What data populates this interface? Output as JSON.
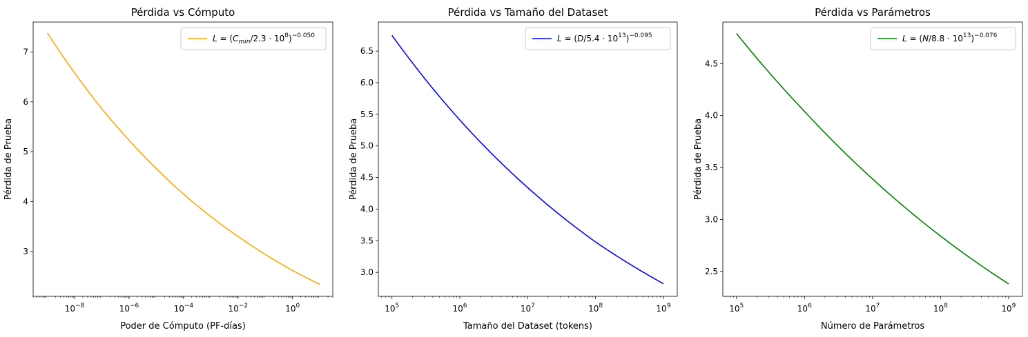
{
  "chart_data": [
    {
      "type": "line",
      "title": "Pérdida vs Cómputo",
      "xlabel": "Poder de Cómputo (PF-días)",
      "ylabel": "Pérdida de Prueba",
      "xscale": "log",
      "xlim": [
        3e-10,
        30.0
      ],
      "ylim": [
        2.1,
        7.6
      ],
      "xticks": [
        {
          "value": 1e-08,
          "base": "10",
          "exp": "−8"
        },
        {
          "value": 1e-06,
          "base": "10",
          "exp": "−6"
        },
        {
          "value": 0.0001,
          "base": "10",
          "exp": "−4"
        },
        {
          "value": 0.01,
          "base": "10",
          "exp": "−2"
        },
        {
          "value": 1,
          "base": "10",
          "exp": "0"
        }
      ],
      "yticks": [
        3,
        4,
        5,
        6,
        7
      ],
      "grid": false,
      "legend": "top-right",
      "series": [
        {
          "name": "L = (Cmin/2.3·10^8)^−0.050",
          "legend_parts": {
            "lhs": "L",
            "var": "C",
            "sub": "min",
            "scale": "/2.3 · 10",
            "scale_exp": "8",
            "exp": "−0.050"
          },
          "color": "#FFA500",
          "x": [
            1e-09,
            1e-08,
            1e-07,
            1e-06,
            1e-05,
            0.0001,
            0.001,
            0.01,
            0.1,
            1,
            10
          ],
          "y": [
            7.38,
            6.58,
            5.86,
            5.23,
            4.66,
            4.15,
            3.7,
            3.3,
            2.94,
            2.62,
            2.34
          ]
        }
      ]
    },
    {
      "type": "line",
      "title": "Pérdida vs Tamaño del Dataset",
      "xlabel": "Tamaño del Dataset (tokens)",
      "ylabel": "Pérdida de Prueba",
      "xscale": "log",
      "xlim": [
        63000.0,
        1600000000.0
      ],
      "ylim": [
        2.62,
        6.96
      ],
      "xticks": [
        {
          "value": 100000.0,
          "base": "10",
          "exp": "5"
        },
        {
          "value": 1000000.0,
          "base": "10",
          "exp": "6"
        },
        {
          "value": 10000000.0,
          "base": "10",
          "exp": "7"
        },
        {
          "value": 100000000.0,
          "base": "10",
          "exp": "8"
        },
        {
          "value": 1000000000.0,
          "base": "10",
          "exp": "9"
        }
      ],
      "yticks": [
        3.0,
        3.5,
        4.0,
        4.5,
        5.0,
        5.5,
        6.0,
        6.5
      ],
      "grid": false,
      "legend": "top-right",
      "series": [
        {
          "name": "L = (D/5.4·10^13)^−0.095",
          "legend_parts": {
            "lhs": "L",
            "var": "D",
            "sub": "",
            "scale": "/5.4 · 10",
            "scale_exp": "13",
            "exp": "−0.095"
          },
          "color": "#0000FF",
          "x": [
            100000.0,
            1000000.0,
            10000000.0,
            100000000.0,
            1000000000.0
          ],
          "y": [
            6.75,
            5.41,
            4.34,
            3.48,
            2.82
          ]
        }
      ]
    },
    {
      "type": "line",
      "title": "Pérdida vs Parámetros",
      "xlabel": "Número de Parámetros",
      "ylabel": "Pérdida de Prueba",
      "xscale": "log",
      "xlim": [
        63000.0,
        1600000000.0
      ],
      "ylim": [
        2.26,
        4.9
      ],
      "xticks": [
        {
          "value": 100000.0,
          "base": "10",
          "exp": "5"
        },
        {
          "value": 1000000.0,
          "base": "10",
          "exp": "6"
        },
        {
          "value": 10000000.0,
          "base": "10",
          "exp": "7"
        },
        {
          "value": 100000000.0,
          "base": "10",
          "exp": "8"
        },
        {
          "value": 1000000000.0,
          "base": "10",
          "exp": "9"
        }
      ],
      "yticks": [
        2.5,
        3.0,
        3.5,
        4.0,
        4.5
      ],
      "grid": false,
      "legend": "top-right",
      "series": [
        {
          "name": "L = (N/8.8·10^13)^−0.076",
          "legend_parts": {
            "lhs": "L",
            "var": "N",
            "sub": "",
            "scale": "/8.8 · 10",
            "scale_exp": "13",
            "exp": "−0.076"
          },
          "color": "#008000",
          "x": [
            100000.0,
            1000000.0,
            10000000.0,
            100000000.0,
            1000000000.0
          ],
          "y": [
            4.79,
            4.04,
            3.39,
            2.84,
            2.38
          ]
        }
      ]
    }
  ]
}
